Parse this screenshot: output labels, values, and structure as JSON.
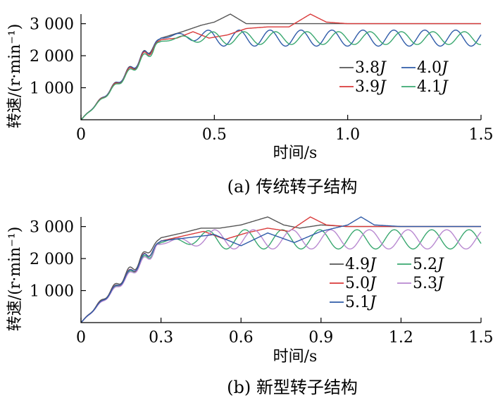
{
  "chart_data": [
    {
      "type": "line",
      "caption": "(a)  传统转子结构",
      "xlabel": "时间/s",
      "ylabel": "转速/(r·min⁻¹)",
      "xlim": [
        0,
        1.5
      ],
      "ylim": [
        0,
        3300
      ],
      "xticks": [
        0,
        0.5,
        1.0,
        1.5
      ],
      "xtick_labels": [
        "0",
        "0.5",
        "1.0",
        "1.5"
      ],
      "yticks": [
        1000,
        2000,
        3000
      ],
      "ytick_labels": [
        "1 000",
        "2 000",
        "3 000"
      ],
      "grid": false,
      "legend_position": "lower-right inside",
      "series": [
        {
          "name": "3.8J",
          "color": "#555555",
          "ramp_end": 0.24,
          "ripple_period": 0.055,
          "ripple_amp": 160,
          "x": [
            0.3,
            0.38,
            0.45,
            0.5,
            0.56,
            0.62,
            0.7,
            0.8,
            0.9,
            1.0,
            1.2,
            1.5
          ],
          "y": [
            2550,
            2750,
            2950,
            3050,
            3300,
            3000,
            3000,
            3000,
            3000,
            3000,
            3000,
            3000
          ],
          "osc": {
            "center": 3000,
            "amp": 0,
            "period": 0.3,
            "phase": 0,
            "decay": 0
          }
        },
        {
          "name": "4.0J",
          "color": "#2F5BA8",
          "ramp_end": 0.26,
          "ripple_period": 0.055,
          "ripple_amp": 150,
          "x": [
            0.3,
            0.4,
            0.5
          ],
          "y": [
            2550,
            2700,
            2800
          ],
          "osc": {
            "center": 2550,
            "amp": 250,
            "period": 0.116,
            "phase": 0.1,
            "decay": 0
          }
        },
        {
          "name": "3.9J",
          "color": "#D93A3A",
          "ramp_end": 0.25,
          "ripple_period": 0.055,
          "ripple_amp": 160,
          "x": [
            0.3,
            0.36,
            0.42,
            0.48,
            0.55,
            0.62,
            0.7,
            0.78,
            0.86,
            0.92,
            1.0,
            1.1,
            1.2,
            1.5
          ],
          "y": [
            2500,
            2550,
            2750,
            2550,
            2650,
            2850,
            2900,
            2900,
            3300,
            3050,
            3000,
            3000,
            3000,
            3000
          ],
          "osc": {
            "center": 3000,
            "amp": 0,
            "period": 0.3,
            "phase": 0,
            "decay": 0
          }
        },
        {
          "name": "4.1J",
          "color": "#3AA870",
          "ramp_end": 0.27,
          "ripple_period": 0.055,
          "ripple_amp": 150,
          "x": [
            0.3,
            0.4,
            0.5
          ],
          "y": [
            2450,
            2550,
            2600
          ],
          "osc": {
            "center": 2550,
            "amp": 200,
            "period": 0.118,
            "phase": 0.7,
            "decay": 0
          }
        }
      ]
    },
    {
      "type": "line",
      "caption": "(b)  新型转子结构",
      "xlabel": "时间/s",
      "ylabel": "转速/(r·min⁻¹)",
      "xlim": [
        0,
        1.5
      ],
      "ylim": [
        0,
        3300
      ],
      "xticks": [
        0,
        0.3,
        0.6,
        0.9,
        1.2,
        1.5
      ],
      "xtick_labels": [
        "0",
        "0.3",
        "0.6",
        "0.9",
        "1.2",
        "1.5"
      ],
      "yticks": [
        1000,
        2000,
        3000
      ],
      "ytick_labels": [
        "1 000",
        "2 000",
        "3 000"
      ],
      "grid": false,
      "legend_position": "lower-right inside",
      "series": [
        {
          "name": "4.9J",
          "color": "#555555",
          "ramp_end": 0.22,
          "ripple_period": 0.055,
          "ripple_amp": 160,
          "x": [
            0.3,
            0.38,
            0.45,
            0.52,
            0.6,
            0.66,
            0.7,
            0.76,
            0.82,
            0.9,
            1.0,
            1.5
          ],
          "y": [
            2650,
            2800,
            2950,
            2950,
            3050,
            3200,
            3300,
            3050,
            2950,
            3050,
            3000,
            3000
          ],
          "osc": {
            "center": 3000,
            "amp": 0,
            "period": 0.3,
            "phase": 0,
            "decay": 0
          }
        },
        {
          "name": "5.2J",
          "color": "#3AA870",
          "ramp_end": 0.27,
          "ripple_period": 0.055,
          "ripple_amp": 150,
          "x": [
            0.3,
            0.4,
            0.5
          ],
          "y": [
            2500,
            2600,
            2650
          ],
          "osc": {
            "center": 2600,
            "amp": 300,
            "period": 0.14,
            "phase": 0.3,
            "decay": 0
          }
        },
        {
          "name": "5.0J",
          "color": "#D93A3A",
          "ramp_end": 0.24,
          "ripple_period": 0.055,
          "ripple_amp": 160,
          "x": [
            0.3,
            0.38,
            0.46,
            0.54,
            0.62,
            0.7,
            0.78,
            0.86,
            0.92,
            1.0,
            1.5
          ],
          "y": [
            2550,
            2700,
            2850,
            2600,
            2800,
            2950,
            2850,
            3300,
            3050,
            3000,
            3000
          ],
          "osc": {
            "center": 3000,
            "amp": 0,
            "period": 0.3,
            "phase": 0,
            "decay": 0
          }
        },
        {
          "name": "5.3J",
          "color": "#B888D0",
          "ramp_end": 0.28,
          "ripple_period": 0.055,
          "ripple_amp": 150,
          "x": [
            0.3,
            0.4,
            0.5
          ],
          "y": [
            2450,
            2550,
            2600
          ],
          "osc": {
            "center": 2600,
            "amp": 300,
            "period": 0.145,
            "phase": 0.9,
            "decay": 0
          }
        },
        {
          "name": "5.1J",
          "color": "#2F5BA8",
          "ramp_end": 0.25,
          "ripple_period": 0.055,
          "ripple_amp": 150,
          "x": [
            0.3,
            0.4,
            0.5,
            0.6,
            0.7,
            0.8,
            0.9,
            1.0,
            1.05,
            1.1,
            1.2,
            1.5
          ],
          "y": [
            2550,
            2650,
            2750,
            2400,
            2800,
            2500,
            2850,
            3050,
            3300,
            3050,
            3000,
            3000
          ],
          "osc": {
            "center": 3000,
            "amp": 0,
            "period": 0.3,
            "phase": 0,
            "decay": 0
          }
        }
      ]
    }
  ]
}
